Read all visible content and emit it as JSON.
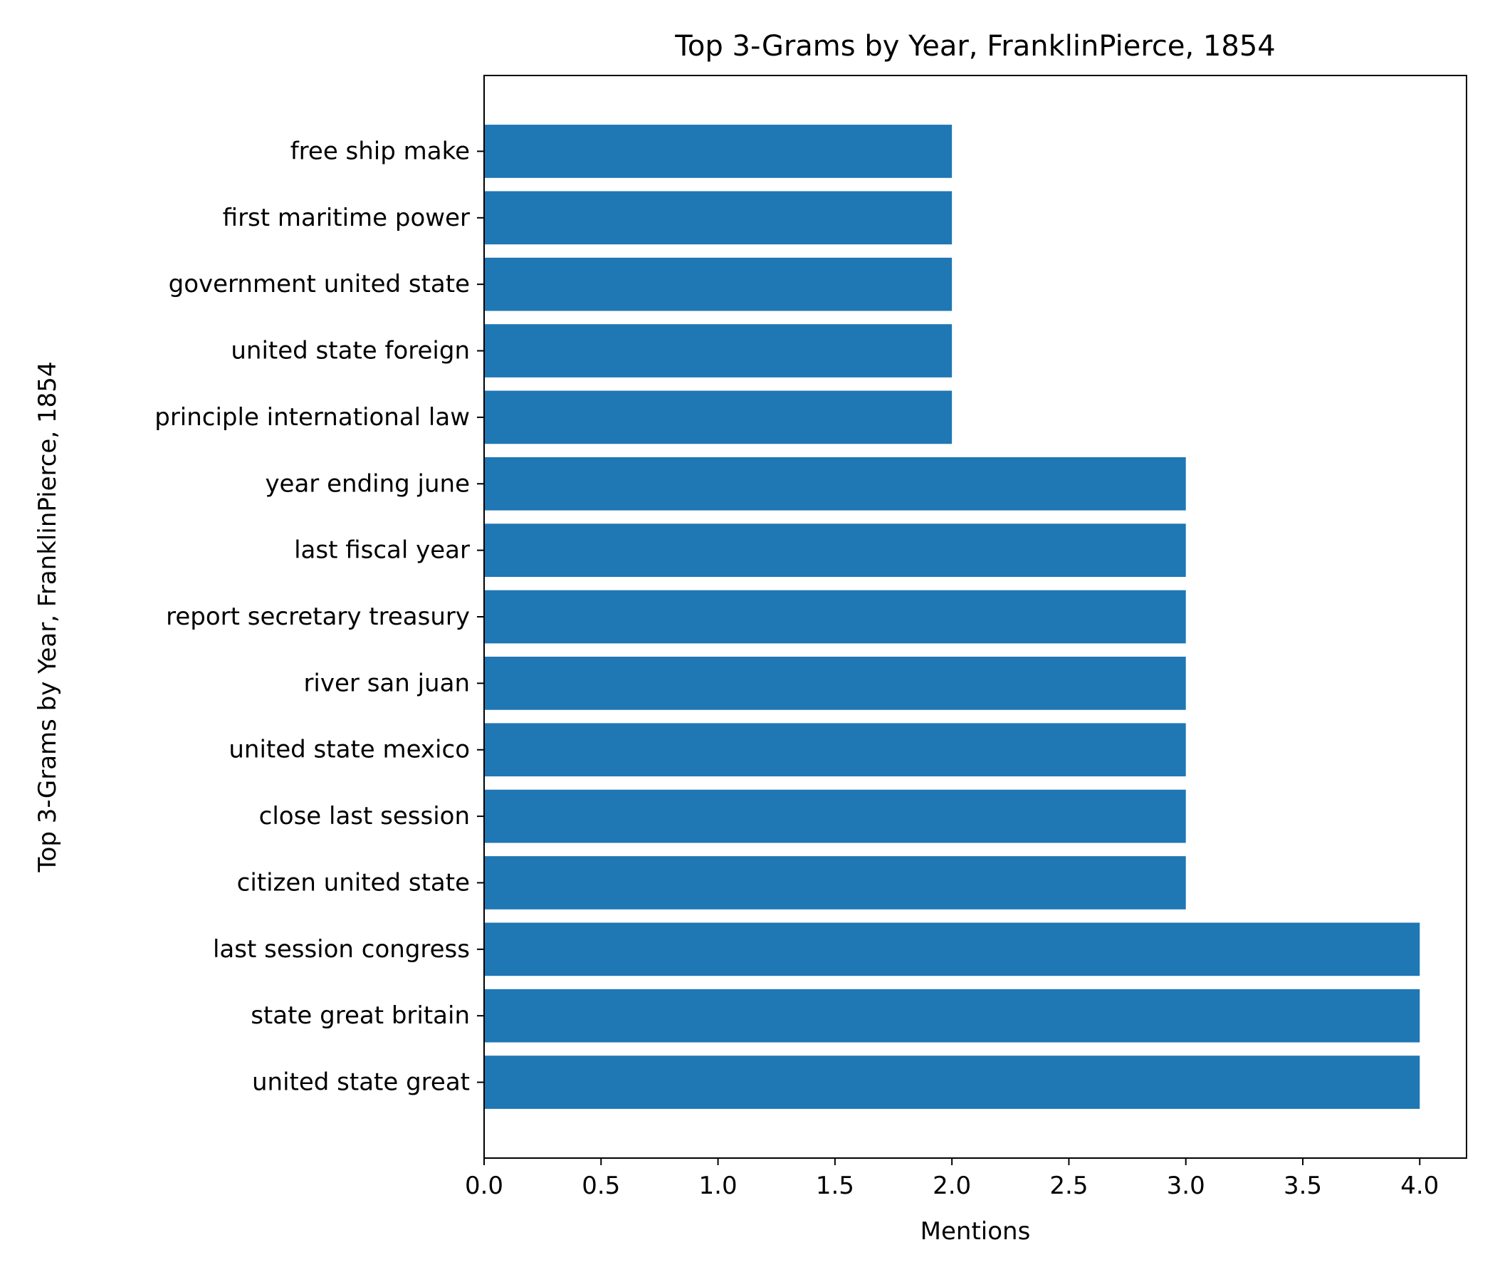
{
  "chart_data": {
    "type": "bar",
    "orientation": "horizontal",
    "title": "Top 3-Grams by Year, FranklinPierce, 1854",
    "xlabel": "Mentions",
    "ylabel": "Top 3-Grams by Year, FranklinPierce, 1854",
    "xlim": [
      0,
      4.2
    ],
    "xticks": [
      "0.0",
      "0.5",
      "1.0",
      "1.5",
      "2.0",
      "2.5",
      "3.0",
      "3.5",
      "4.0"
    ],
    "grid": false,
    "bar_color": "#1f77b4",
    "categories": [
      "united state great",
      "state great britain",
      "last session congress",
      "citizen united state",
      "close last session",
      "united state mexico",
      "river san juan",
      "report secretary treasury",
      "last fiscal year",
      "year ending june",
      "principle international law",
      "united state foreign",
      "government united state",
      "first maritime power",
      "free ship make"
    ],
    "values": [
      4,
      4,
      4,
      3,
      3,
      3,
      3,
      3,
      3,
      3,
      2,
      2,
      2,
      2,
      2
    ]
  }
}
